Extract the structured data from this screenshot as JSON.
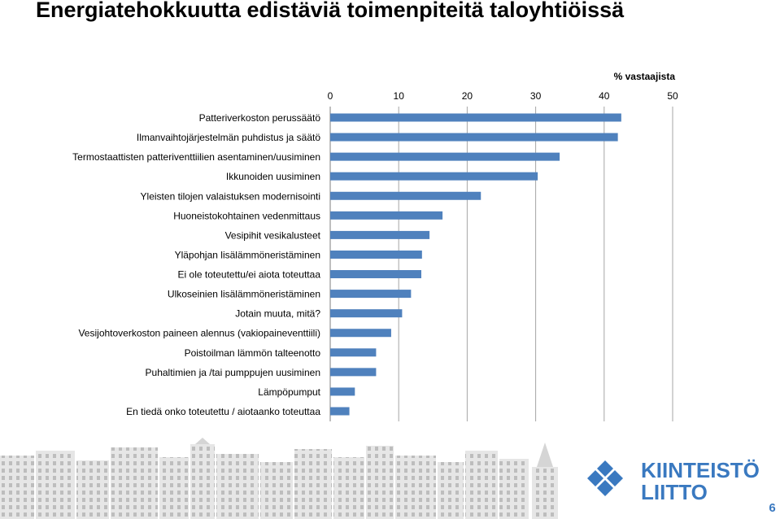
{
  "slide": {
    "title": "Energiatehokkuutta edistäviä toimenpiteitä taloyhtiöissä",
    "page_number": "6",
    "logo": {
      "text_line1": "KIINTEISTÖ",
      "text_line2": "LIITTO",
      "color": "#3a79c0",
      "mark": "four-diamond-logo"
    }
  },
  "chart_data": {
    "type": "bar",
    "orientation": "horizontal",
    "unit_label": "% vastaajista",
    "bar_color": "#4f81bd",
    "xlim": [
      0,
      50
    ],
    "ticks": [
      0,
      10,
      20,
      30,
      40,
      50
    ],
    "tick_labels": [
      "0",
      "10",
      "20",
      "30",
      "40",
      "50"
    ],
    "grid": true,
    "categories": [
      "Patteriverkoston perussäätö",
      "Ilmanvaihtojärjestelmän puhdistus ja säätö",
      "Termostaattisten patteriventtiilien asentaminen/uusiminen",
      "Ikkunoiden uusiminen",
      "Yleisten tilojen valaistuksen modernisointi",
      "Huoneistokohtainen vedenmittaus",
      "Vesipihit vesikalusteet",
      "Yläpohjan lisälämmöneristäminen",
      "Ei ole toteutettu/ei aiota toteuttaa",
      "Ulkoseinien lisälämmöneristäminen",
      "Jotain muuta, mitä?",
      "Vesijohtoverkoston paineen alennus (vakiopaineventtiili)",
      "Poistoilman lämmön talteenotto",
      "Puhaltimien ja /tai pumppujen uusiminen",
      "Lämpöpumput",
      "En tiedä onko toteutettu / aiotaanko toteuttaa"
    ],
    "values": [
      42.5,
      42.0,
      33.5,
      30.3,
      22.0,
      16.4,
      14.5,
      13.4,
      13.3,
      11.8,
      10.5,
      8.9,
      6.7,
      6.7,
      3.6,
      2.8
    ]
  }
}
